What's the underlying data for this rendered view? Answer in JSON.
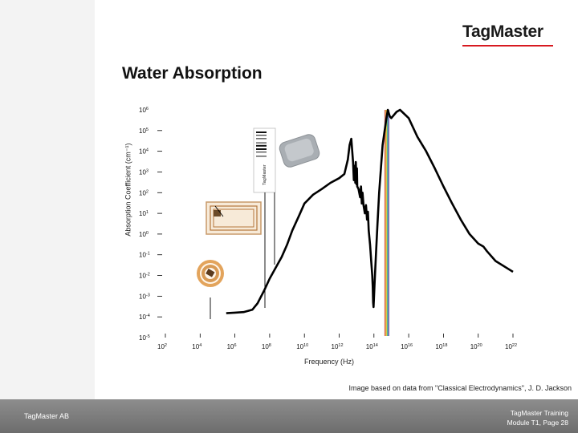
{
  "header": {
    "logo_text": "TagMaster",
    "accent_color": "#d71920"
  },
  "page_title": "Water Absorption",
  "chart_data": {
    "type": "line",
    "title": "Water Absorption",
    "xlabel": "Frequency (Hz)",
    "ylabel": "Absorption Coefficient (cm⁻¹)",
    "x_scale": "log",
    "y_scale": "log",
    "xlim": [
      100,
      10000000000000000000000
    ],
    "ylim": [
      1e-05,
      1000000
    ],
    "x_ticks": [
      {
        "value": 100,
        "mantissa": "10",
        "exp": "2"
      },
      {
        "value": 10000,
        "mantissa": "10",
        "exp": "4"
      },
      {
        "value": 1000000,
        "mantissa": "10",
        "exp": "6"
      },
      {
        "value": 100000000,
        "mantissa": "10",
        "exp": "8"
      },
      {
        "value": 10000000000,
        "mantissa": "10",
        "exp": "10"
      },
      {
        "value": 1000000000000,
        "mantissa": "10",
        "exp": "12"
      },
      {
        "value": 100000000000000,
        "mantissa": "10",
        "exp": "14"
      },
      {
        "value": 10000000000000000,
        "mantissa": "10",
        "exp": "16"
      },
      {
        "value": 1000000000000000000,
        "mantissa": "10",
        "exp": "18"
      },
      {
        "value": 100000000000000000000,
        "mantissa": "10",
        "exp": "20"
      },
      {
        "value": 10000000000000000000000,
        "mantissa": "10",
        "exp": "22"
      }
    ],
    "y_ticks": [
      {
        "value": 1000000,
        "mantissa": "10",
        "exp": "6"
      },
      {
        "value": 100000,
        "mantissa": "10",
        "exp": "5"
      },
      {
        "value": 10000,
        "mantissa": "10",
        "exp": "4"
      },
      {
        "value": 1000,
        "mantissa": "10",
        "exp": "3"
      },
      {
        "value": 100,
        "mantissa": "10",
        "exp": "2"
      },
      {
        "value": 10,
        "mantissa": "10",
        "exp": "1"
      },
      {
        "value": 1,
        "mantissa": "10",
        "exp": "0"
      },
      {
        "value": 0.1,
        "mantissa": "10",
        "exp": "-1"
      },
      {
        "value": 0.01,
        "mantissa": "10",
        "exp": "-2"
      },
      {
        "value": 0.001,
        "mantissa": "10",
        "exp": "-3"
      },
      {
        "value": 0.0001,
        "mantissa": "10",
        "exp": "-4"
      },
      {
        "value": 1e-05,
        "mantissa": "10",
        "exp": "-5"
      }
    ],
    "series": [
      {
        "color": "#000000",
        "points": [
          [
            316000.0,
            0.00015
          ],
          [
            1000000.0,
            0.00016
          ],
          [
            3160000.0,
            0.00017
          ],
          [
            10000000.0,
            0.00022
          ],
          [
            20000000.0,
            0.00045
          ],
          [
            50000000.0,
            0.002
          ],
          [
            100000000.0,
            0.007
          ],
          [
            200000000.0,
            0.02
          ],
          [
            500000000.0,
            0.08
          ],
          [
            1000000000.0,
            0.3
          ],
          [
            2000000000.0,
            1.5
          ],
          [
            5000000000.0,
            8
          ],
          [
            10000000000.0,
            30
          ],
          [
            31600000000.0,
            80
          ],
          [
            100000000000.0,
            150
          ],
          [
            316000000000.0,
            300
          ],
          [
            1000000000000.0,
            500
          ],
          [
            2000000000000.0,
            800
          ],
          [
            3160000000000.0,
            4000
          ],
          [
            4000000000000.0,
            20000
          ],
          [
            5000000000000.0,
            40000
          ],
          [
            6300000000000.0,
            3000
          ],
          [
            7000000000000.0,
            400
          ],
          [
            7900000000000.0,
            2000
          ],
          [
            8500000000000.0,
            300
          ],
          [
            9000000000000.0,
            3000
          ],
          [
            10000000000000.0,
            250
          ],
          [
            10500000000000.0,
            1500
          ],
          [
            11000000000000.0,
            200
          ],
          [
            13000000000000.0,
            150
          ],
          [
            16000000000000.0,
            60
          ],
          [
            18000000000000.0,
            200
          ],
          [
            20000000000000.0,
            30
          ],
          [
            22000000000000.0,
            100
          ],
          [
            25000000000000.0,
            25
          ],
          [
            30000000000000.0,
            10
          ],
          [
            35000000000000.0,
            25
          ],
          [
            40000000000000.0,
            5
          ],
          [
            45000000000000.0,
            12
          ],
          [
            50000000000000.0,
            1.5
          ],
          [
            60000000000000.0,
            0.3
          ],
          [
            70000000000000.0,
            0.05
          ],
          [
            80000000000000.0,
            0.01
          ],
          [
            85000000000000.0,
            0.003
          ],
          [
            90000000000000.0,
            0.0005
          ],
          [
            95000000000000.0,
            0.0003
          ],
          [
            100000000000000.0,
            0.0008
          ],
          [
            110000000000000.0,
            0.005
          ],
          [
            130000000000000.0,
            0.1
          ],
          [
            160000000000000.0,
            3
          ],
          [
            200000000000000.0,
            100
          ],
          [
            316000000000000.0,
            20000
          ],
          [
            500000000000000.0,
            300000
          ],
          [
            630000000000000.0,
            1000000
          ],
          [
            800000000000000.0,
            500000
          ],
          [
            1000000000000000.0,
            400000
          ],
          [
            2000000000000000.0,
            800000
          ],
          [
            3160000000000000.0,
            1000000
          ],
          [
            1e+16,
            400000
          ],
          [
            3.16e+16,
            50000
          ],
          [
            1e+17,
            10000
          ],
          [
            3.16e+17,
            1500
          ],
          [
            1e+18,
            200
          ],
          [
            3.16e+18,
            30
          ],
          [
            1e+19,
            5
          ],
          [
            3.16e+19,
            1
          ],
          [
            1e+20,
            0.35
          ],
          [
            2e+20,
            0.25
          ],
          [
            3.16e+20,
            0.15
          ],
          [
            1e+21,
            0.05
          ],
          [
            1e+22,
            0.015
          ]
        ]
      }
    ],
    "visible_band": {
      "x_range": [
        400000000000000.0,
        750000000000000.0
      ],
      "colors": [
        "#c0392b",
        "#e67e22",
        "#f1c40f",
        "#27ae60",
        "#2e86c1",
        "#6c3483"
      ]
    },
    "grid": false,
    "legend": "none"
  },
  "annotations": {
    "rfid_ticket_label": "TagMaster",
    "device_icon": "rfid-reader-icon",
    "card_icon": "rfid-card-icon",
    "coil_icon": "rfid-coil-tag-icon"
  },
  "source_note": "Image based on data from \"Classical Electrodynamics\", J. D. Jackson",
  "footer": {
    "company": "TagMaster AB",
    "course_line1": "TagMaster Training",
    "course_line2": "Module T1, Page 28"
  }
}
